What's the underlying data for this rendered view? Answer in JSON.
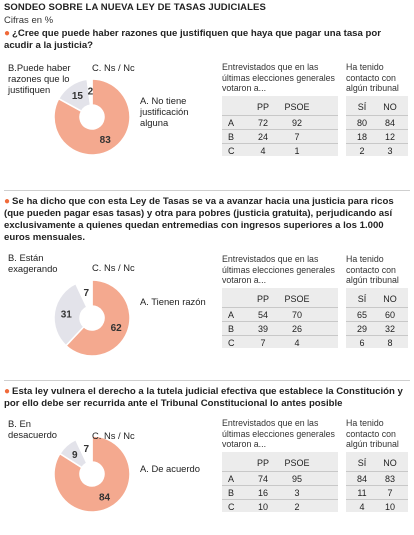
{
  "header": {
    "title": "SONDEO SOBRE LA NUEVA LEY DE TASAS JUDICIALES",
    "subtitle": "Cifras en %"
  },
  "chart_data": [
    {
      "type": "pie",
      "question": "¿Cree que puede haber razones que justifiquen que haya que pagar una tasa por acudir a la justicia?",
      "slices": [
        {
          "label": "A. No tiene justificación alguna",
          "value": 83,
          "color": "#f4a98f"
        },
        {
          "label": "B.Puede haber razones que lo justifiquen",
          "value": 15,
          "color": "#e3e3ea"
        },
        {
          "label": "C. Ns / Nc",
          "value": 2,
          "color": "#ffffff"
        }
      ],
      "table_voters": {
        "header": "Entrevistados que en las últimas elecciones generales votaron a...",
        "columns": [
          "PP",
          "PSOE"
        ],
        "rows": [
          [
            "A",
            72,
            92
          ],
          [
            "B",
            24,
            7
          ],
          [
            "C",
            4,
            1
          ]
        ]
      },
      "table_tribunal": {
        "header": "Ha tenido contacto con algún tribunal",
        "columns": [
          "SÍ",
          "NO"
        ],
        "rows": [
          [
            80,
            84
          ],
          [
            18,
            12
          ],
          [
            2,
            3
          ]
        ]
      }
    },
    {
      "type": "pie",
      "question": "Se ha dicho que con esta Ley de Tasas se va a avanzar hacia una justicia para ricos (que pueden pagar esas tasas) y otra para pobres (justicia gratuita), perjudicando así exclusivamente a quienes quedan entremedias con ingresos superiores a los 1.000 euros mensuales.",
      "slices": [
        {
          "label": "A. Tienen razón",
          "value": 62,
          "color": "#f4a98f"
        },
        {
          "label": "B. Están exagerando",
          "value": 31,
          "color": "#e3e3ea"
        },
        {
          "label": "C. Ns / Nc",
          "value": 7,
          "color": "#ffffff"
        }
      ],
      "table_voters": {
        "header": "Entrevistados que en las últimas elecciones generales votaron a...",
        "columns": [
          "PP",
          "PSOE"
        ],
        "rows": [
          [
            "A",
            54,
            70
          ],
          [
            "B",
            39,
            26
          ],
          [
            "C",
            7,
            4
          ]
        ]
      },
      "table_tribunal": {
        "header": "Ha tenido contacto con algún tribunal",
        "columns": [
          "SÍ",
          "NO"
        ],
        "rows": [
          [
            65,
            60
          ],
          [
            29,
            32
          ],
          [
            6,
            8
          ]
        ]
      }
    },
    {
      "type": "pie",
      "question": "Esta ley vulnera el derecho a la tutela judicial efectiva que establece la Constitución y por ello debe ser recurrida ante el Tribunal Constitucional lo antes posible",
      "slices": [
        {
          "label": "A. De acuerdo",
          "value": 84,
          "color": "#f4a98f"
        },
        {
          "label": "B. En desacuerdo",
          "value": 9,
          "color": "#e3e3ea"
        },
        {
          "label": "C. Ns / Nc",
          "value": 7,
          "color": "#ffffff"
        }
      ],
      "table_voters": {
        "header": "Entrevistados que en las últimas elecciones generales votaron a...",
        "columns": [
          "PP",
          "PSOE"
        ],
        "rows": [
          [
            "A",
            74,
            95
          ],
          [
            "B",
            16,
            3
          ],
          [
            "C",
            10,
            2
          ]
        ]
      },
      "table_tribunal": {
        "header": "Ha tenido contacto con algún tribunal",
        "columns": [
          "SÍ",
          "NO"
        ],
        "rows": [
          [
            84,
            83
          ],
          [
            11,
            7
          ],
          [
            4,
            10
          ]
        ]
      }
    }
  ],
  "colors": {
    "accent": "#f06a3a",
    "slice_a": "#f4a98f",
    "slice_b": "#e3e3ea",
    "table_bg": "#ececec"
  }
}
